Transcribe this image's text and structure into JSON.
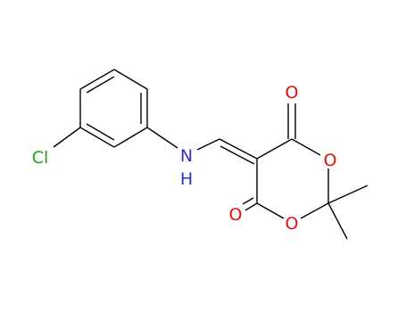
{
  "atoms": [
    {
      "label": "Cl"
    },
    {
      "label": "N"
    },
    {
      "label": "H"
    },
    {
      "label": "O"
    },
    {
      "label": "O"
    },
    {
      "label": "O"
    },
    {
      "label": "O"
    }
  ]
}
